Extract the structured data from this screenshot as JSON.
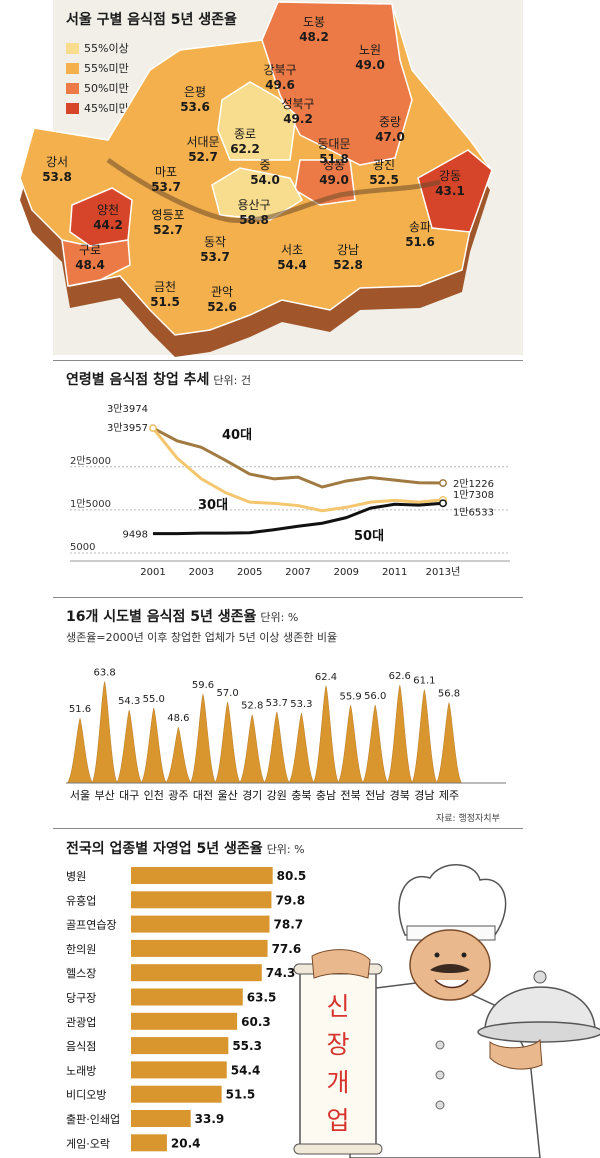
{
  "colors": {
    "above55": "#f9dd8e",
    "below55": "#f4b04d",
    "below50": "#ec7a46",
    "below45": "#d6452a",
    "line40": "#a07a40",
    "line30": "#f4c66f",
    "line50": "#111111",
    "bar": "#d9962f"
  },
  "map": {
    "title": "서울 구별 음식점 5년 생존율",
    "legend": [
      "55%이상",
      "55%미만",
      "50%미만",
      "45%미만"
    ]
  },
  "chart_data": [
    {
      "type": "choropleth",
      "title": "서울 구별 음식점 5년 생존율",
      "legend": [
        "55%이상",
        "55%미만",
        "50%미만",
        "45%미만"
      ],
      "districts": [
        {
          "name": "도봉",
          "value": "48.2"
        },
        {
          "name": "노원",
          "value": "49.0"
        },
        {
          "name": "강북구",
          "value": "49.6"
        },
        {
          "name": "은평",
          "value": "53.6"
        },
        {
          "name": "성북구",
          "value": "49.2"
        },
        {
          "name": "중랑",
          "value": "47.0"
        },
        {
          "name": "종로",
          "value": "62.2"
        },
        {
          "name": "서대문",
          "value": "52.7"
        },
        {
          "name": "동대문",
          "value": "51.8"
        },
        {
          "name": "강서",
          "value": "53.8"
        },
        {
          "name": "마포",
          "value": "53.7"
        },
        {
          "name": "중",
          "value": "54.0"
        },
        {
          "name": "성동",
          "value": "49.0"
        },
        {
          "name": "광진",
          "value": "52.5"
        },
        {
          "name": "강동",
          "value": "43.1"
        },
        {
          "name": "용산구",
          "value": "58.8"
        },
        {
          "name": "양천",
          "value": "44.2"
        },
        {
          "name": "영등포",
          "value": "52.7"
        },
        {
          "name": "송파",
          "value": "51.6"
        },
        {
          "name": "동작",
          "value": "53.7"
        },
        {
          "name": "서초",
          "value": "54.4"
        },
        {
          "name": "강남",
          "value": "52.8"
        },
        {
          "name": "구로",
          "value": "48.4"
        },
        {
          "name": "금천",
          "value": "51.5"
        },
        {
          "name": "관악",
          "value": "52.6"
        }
      ]
    },
    {
      "type": "line",
      "title": "연령별 음식점 창업 추세",
      "unit": "단위: 건",
      "x": [
        2001,
        2002,
        2003,
        2004,
        2005,
        2006,
        2007,
        2008,
        2009,
        2010,
        2011,
        2012,
        2013
      ],
      "xtick_labels": [
        "2001",
        "2003",
        "2005",
        "2007",
        "2009",
        "2011",
        "2013년"
      ],
      "xtick_values": [
        2001,
        2003,
        2005,
        2007,
        2009,
        2011,
        2013
      ],
      "ytick_labels": [
        "2만5000",
        "1만5000",
        "5000"
      ],
      "ytick_values": [
        25000,
        15000,
        5000
      ],
      "ylim": [
        5000,
        37000
      ],
      "series": [
        {
          "name": "40대",
          "values": [
            33974,
            31000,
            29500,
            26500,
            23300,
            22200,
            22600,
            20300,
            21700,
            22500,
            21900,
            21300,
            21226
          ]
        },
        {
          "name": "30대",
          "values": [
            33957,
            27000,
            22200,
            19000,
            16800,
            16500,
            16000,
            14800,
            15600,
            16800,
            17200,
            16800,
            17308
          ]
        },
        {
          "name": "50대",
          "values": [
            9498,
            9500,
            9600,
            9600,
            9700,
            10400,
            11200,
            11900,
            13200,
            15400,
            16300,
            16100,
            16533
          ]
        }
      ],
      "start_labels": [
        "3만3974",
        "3만3957"
      ],
      "end_labels": [
        "2만1226",
        "1만7308",
        "1만6533"
      ],
      "start_label_50": "9498"
    },
    {
      "type": "bar",
      "title": "16개 시도별 음식점 5년 생존율",
      "unit": "단위: %",
      "subtitle": "생존율=2000년 이후 창업한 업체가 5년 이상 생존한 비율",
      "categories": [
        "서울",
        "부산",
        "대구",
        "인천",
        "광주",
        "대전",
        "울산",
        "경기",
        "강원",
        "충북",
        "충남",
        "전북",
        "전남",
        "경북",
        "경남",
        "제주"
      ],
      "values": [
        51.6,
        63.8,
        54.3,
        55.0,
        48.6,
        59.6,
        57.0,
        52.8,
        53.7,
        53.3,
        62.4,
        55.9,
        56.0,
        62.6,
        61.1,
        56.8
      ],
      "value_labels": [
        "51.6",
        "63.8",
        "54.3",
        "55.0",
        "48.6",
        "59.6",
        "57.0",
        "52.8",
        "53.7",
        "53.3",
        "62.4",
        "55.9",
        "56.0",
        "62.6",
        "61.1",
        "56.8"
      ],
      "source": "자료: 행정자치부"
    },
    {
      "type": "bar",
      "title": "전국의 업종별 자영업 5년 생존율",
      "unit": "단위: %",
      "categories": [
        "병원",
        "유흥업",
        "골프연습장",
        "한의원",
        "헬스장",
        "당구장",
        "관광업",
        "음식점",
        "노래방",
        "비디오방",
        "출판·인쇄업",
        "게임·오락"
      ],
      "values": [
        80.5,
        79.8,
        78.7,
        77.6,
        74.3,
        63.5,
        60.3,
        55.3,
        54.4,
        51.5,
        33.9,
        20.4
      ],
      "value_labels": [
        "80.5",
        "79.8",
        "78.7",
        "77.6",
        "74.3",
        "63.5",
        "60.3",
        "55.3",
        "54.4",
        "51.5",
        "33.9",
        "20.4"
      ]
    }
  ],
  "scroll_text": "신장개업"
}
